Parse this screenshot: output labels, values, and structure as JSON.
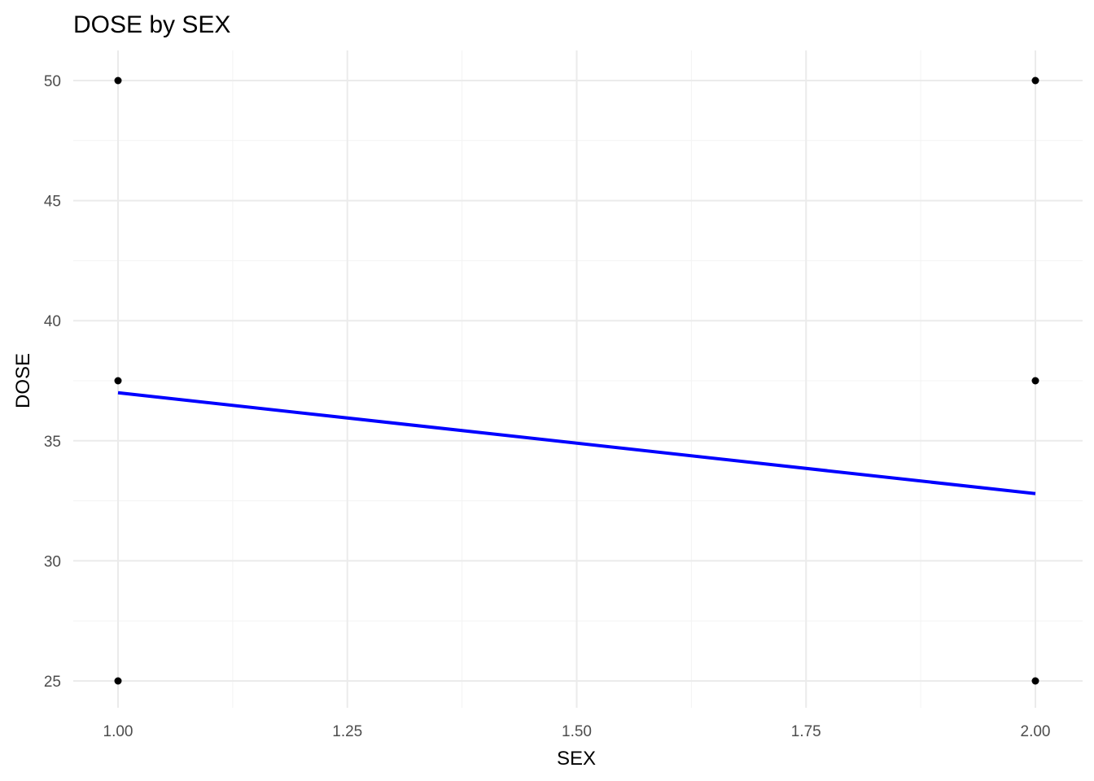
{
  "chart_data": {
    "type": "scatter",
    "title": "DOSE by SEX",
    "xlabel": "SEX",
    "ylabel": "DOSE",
    "xlim": [
      0.9,
      2.05
    ],
    "ylim": [
      24,
      51.5
    ],
    "x_ticks": [
      1.0,
      1.25,
      1.5,
      1.75,
      2.0
    ],
    "x_tick_labels": [
      "1.00",
      "1.25",
      "1.50",
      "1.75",
      "2.00"
    ],
    "y_ticks": [
      25,
      30,
      35,
      40,
      45,
      50
    ],
    "y_tick_labels": [
      "25",
      "30",
      "35",
      "40",
      "45",
      "50"
    ],
    "x_minor_ticks": [
      1.125,
      1.375,
      1.625,
      1.875
    ],
    "y_minor_ticks": [
      27.5,
      32.5,
      37.5,
      42.5,
      47.5
    ],
    "grid": true,
    "legend": "none",
    "points": [
      {
        "x": 1,
        "y": 50
      },
      {
        "x": 1,
        "y": 37.5
      },
      {
        "x": 1,
        "y": 25
      },
      {
        "x": 2,
        "y": 50
      },
      {
        "x": 2,
        "y": 37.5
      },
      {
        "x": 2,
        "y": 25
      }
    ],
    "point_color": "#000000",
    "trend_line": {
      "x": [
        1,
        2
      ],
      "y": [
        37.0,
        32.8
      ],
      "color": "#0000ff"
    }
  }
}
